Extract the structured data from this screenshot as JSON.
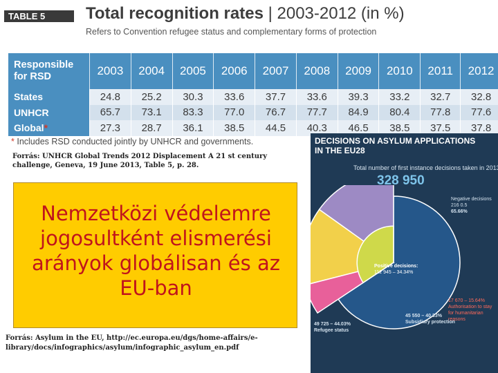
{
  "table": {
    "tag": "TABLE 5",
    "title_bold": "Total recognition rates",
    "title_light": " | 2003-2012 (in %)",
    "subtitle": "Refers to Convention refugee status and complementary forms of protection",
    "header_first": "Responsible for RSD",
    "years": [
      "2003",
      "2004",
      "2005",
      "2006",
      "2007",
      "2008",
      "2009",
      "2010",
      "2011",
      "2012"
    ],
    "rows": [
      {
        "label": "States",
        "values": [
          "24.8",
          "25.2",
          "30.3",
          "33.6",
          "37.7",
          "33.6",
          "39.3",
          "33.2",
          "32.7",
          "32.8"
        ]
      },
      {
        "label": "UNHCR",
        "values": [
          "65.7",
          "73.1",
          "83.3",
          "77.0",
          "76.7",
          "77.7",
          "84.9",
          "80.4",
          "77.8",
          "77.6"
        ]
      },
      {
        "label": "Global",
        "asterisk": "*",
        "values": [
          "27.3",
          "28.7",
          "36.1",
          "38.5",
          "44.5",
          "40.3",
          "46.5",
          "38.5",
          "37.5",
          "37.8"
        ]
      }
    ],
    "footnote_asterisk": "*",
    "footnote": " Includes RSD conducted jointly by UNHCR and governments."
  },
  "sources": {
    "unhcr": "Forrás: UNHCR Global Trends 2012 Displacement A 21 st century challenge, Geneva, 19 June 2013, Table 5, p. 28.",
    "eu": "Forrás: Asylum in the EU, http://ec.europa.eu/dgs/home-affairs/e-library/docs/infographics/asylum/infographic_asylum_en.pdf"
  },
  "highlight": {
    "line1": "Nemzetközi védelemre",
    "line2": "jogosultként elismerési",
    "line3": "arányok globálisan és az",
    "line4": "EU-ban",
    "background": "#ffcc00",
    "text_color": "#c0141c"
  },
  "infographic": {
    "header1": "DECISIONS ON ASYLUM APPLICATIONS",
    "header2": "IN THE EU28",
    "subtitle": "Total number of first instance decisions taken in 2013",
    "total": "328 950",
    "negative_label": "Negative decisions",
    "negative_value": "216 0.5",
    "negative_pct": "65.66%",
    "positive_label": "Positive decisions:",
    "positive_value": "112 945 – 34.34%",
    "humanitarian_value": "17 670 – 15.64%",
    "humanitarian_label": "Authorisation to stay for humanitarian reasons",
    "subsidiary_value": "45 550 – 40.33%",
    "subsidiary_label": "Subsidiary protection",
    "refugee_value": "49 725 – 44.03%",
    "refugee_label": "Refugee status",
    "shares": {
      "negative": 65.66,
      "positive": 34.34,
      "refugee": 44.03,
      "subsidiary": 40.33,
      "humanitarian": 15.64
    },
    "colors": {
      "negative": "#25578a",
      "refugee": "#9d8ac4",
      "subsidiary": "#f2d04a",
      "humanitarian": "#e8609a",
      "positive": "#cfd94a"
    }
  }
}
